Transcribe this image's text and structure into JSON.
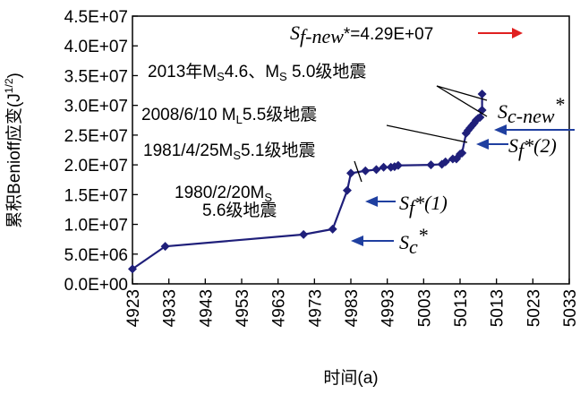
{
  "chart_data": {
    "type": "line",
    "title": "",
    "xlabel": "时间(a)",
    "ylabel": "累积Benioff应变(J^(1/2))",
    "xlim": [
      4923,
      5033
    ],
    "ylim": [
      0,
      45000000
    ],
    "x_ticks": [
      "4923",
      "4933",
      "4943",
      "4953",
      "4963",
      "4973",
      "4983",
      "4993",
      "5003",
      "5013",
      "5013",
      "5023",
      "5033"
    ],
    "y_ticks": [
      "0.0E+00",
      "5.0E+06",
      "1.0E+07",
      "1.5E+07",
      "2.0E+07",
      "2.5E+07",
      "3.0E+07",
      "3.5E+07",
      "4.0E+07",
      "4.5E+07"
    ],
    "grid": false,
    "legend": "none",
    "color": "#1f1f7a",
    "arrow_color": "#1f3fa0",
    "red_arrow_color": "#e02020",
    "series": [
      {
        "name": "",
        "points": [
          [
            4923,
            2500000
          ],
          [
            4932,
            6300000
          ],
          [
            4970,
            8300000
          ],
          [
            4978,
            9200000
          ],
          [
            4982,
            15700000
          ],
          [
            4983,
            18600000
          ],
          [
            4987,
            19000000
          ],
          [
            4990,
            19200000
          ],
          [
            4992,
            19600000
          ],
          [
            4994,
            19600000
          ],
          [
            4995,
            19700000
          ],
          [
            4996,
            19900000
          ],
          [
            5005,
            20000000
          ],
          [
            5008,
            20100000
          ],
          [
            5009,
            20500000
          ],
          [
            5011,
            21000000
          ],
          [
            5012,
            21000000
          ],
          [
            5013,
            21800000
          ],
          [
            5014,
            22000000
          ],
          [
            5016,
            25300000
          ],
          [
            5017,
            25800000
          ],
          [
            5018,
            26200000
          ],
          [
            5019,
            26600000
          ],
          [
            5020,
            27000000
          ],
          [
            5021,
            27500000
          ],
          [
            5022,
            27800000
          ],
          [
            5023,
            28000000
          ],
          [
            5024,
            29200000
          ],
          [
            5024,
            31900000
          ]
        ]
      }
    ],
    "annotations": {
      "ml2013": "2013年M",
      "ml2013_sub": "S",
      "ml2013_mid": "4.6、M",
      "ml2013_sub2": "S",
      "ml2013_end": " 5.0级地震",
      "ml2008": "2008/6/10 M",
      "ml2008_sub": "L",
      "ml2008_end": "5.5级地震",
      "ml1981": "1981/4/25M",
      "ml1981_sub": "S",
      "ml1981_end": "5.1级地震",
      "ml1980a": "1980/2/20M",
      "ml1980a_sub": "S",
      "ml1980b": "5.6级地震",
      "sfnew_S": "S",
      "sfnew_sub": "f-new",
      "sfnew_val": "*=4.29E+07",
      "scnew_S": "S",
      "scnew_sub": "c-new",
      "scnew_star": "*",
      "sf2_S": "S",
      "sf2_sub": "f",
      "sf2_end": "*(2)",
      "sf1_S": "S",
      "sf1_sub": "f",
      "sf1_end": "*(1)",
      "sc_S": "S",
      "sc_sub": "c",
      "sc_star": "*"
    }
  }
}
